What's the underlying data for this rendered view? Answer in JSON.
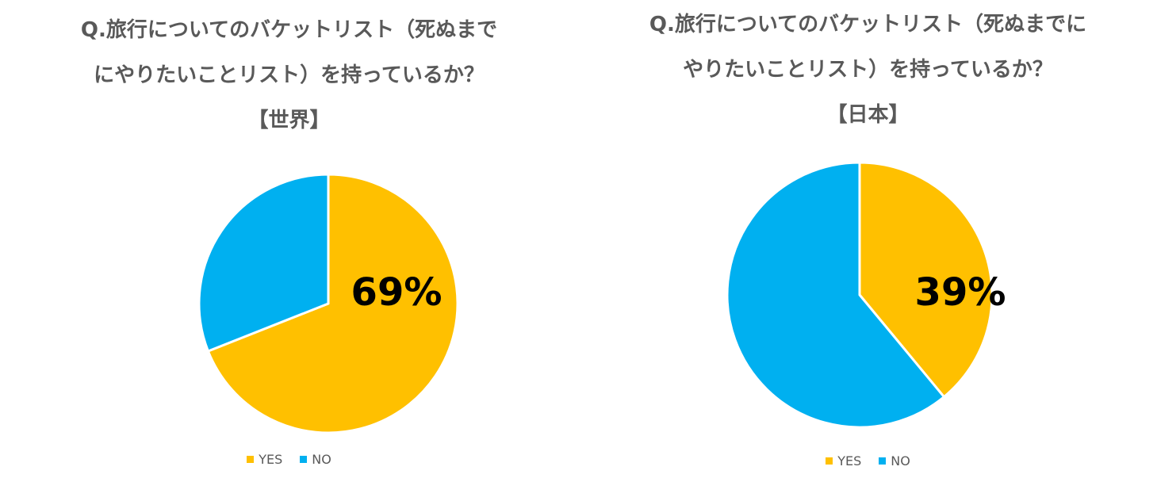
{
  "chart_data": [
    {
      "type": "pie",
      "title_lines": [
        "Q.旅行についてのバケットリスト（死ぬまで",
        "にやりたいことリスト）を持っているか？",
        "【世界】"
      ],
      "categories": [
        "YES",
        "NO"
      ],
      "values": [
        69,
        31
      ],
      "colors": [
        "#FFC000",
        "#00B0F0"
      ],
      "data_label": "69%",
      "legend": [
        "YES",
        "NO"
      ],
      "legend_position": "bottom"
    },
    {
      "type": "pie",
      "title_lines": [
        "Q.旅行についてのバケットリスト（死ぬまでに",
        "やりたいことリスト）を持っているか？",
        "【日本】"
      ],
      "categories": [
        "YES",
        "NO"
      ],
      "values": [
        39,
        61
      ],
      "colors": [
        "#FFC000",
        "#00B0F0"
      ],
      "data_label": "39%",
      "legend": [
        "YES",
        "NO"
      ],
      "legend_position": "bottom"
    }
  ]
}
